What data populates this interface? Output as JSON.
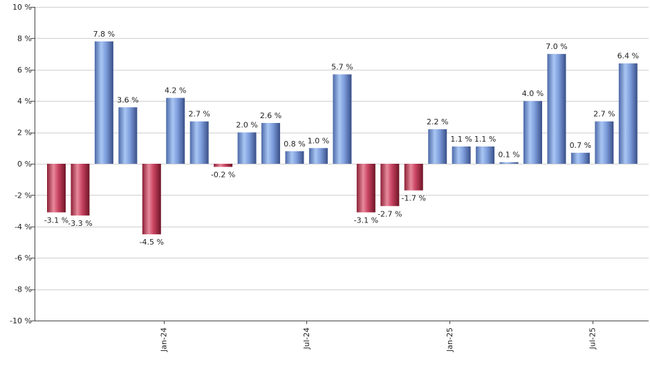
{
  "chart_data": {
    "type": "bar",
    "ylim": [
      -10,
      10
    ],
    "y_ticks": [
      {
        "value": 10,
        "label": "10 %"
      },
      {
        "value": 8,
        "label": "8 %"
      },
      {
        "value": 6,
        "label": "6 %"
      },
      {
        "value": 4,
        "label": "4 %"
      },
      {
        "value": 2,
        "label": "2 %"
      },
      {
        "value": 0,
        "label": "0 %"
      },
      {
        "value": -2,
        "label": "-2 %"
      },
      {
        "value": -4,
        "label": "-4 %"
      },
      {
        "value": -6,
        "label": "-6 %"
      },
      {
        "value": -8,
        "label": "-8 %"
      },
      {
        "value": -10,
        "label": "-10 %"
      }
    ],
    "x_ticks": [
      {
        "index": 4.5,
        "label": "Jan-24"
      },
      {
        "index": 10.5,
        "label": "Jul-24"
      },
      {
        "index": 16.5,
        "label": "Jan-25"
      },
      {
        "index": 22.5,
        "label": "Jul-25"
      }
    ],
    "values": [
      -3.1,
      -3.3,
      7.8,
      3.6,
      -4.5,
      4.2,
      2.7,
      -0.2,
      2.0,
      2.6,
      0.8,
      1.0,
      5.7,
      -3.1,
      -2.7,
      -1.7,
      2.2,
      1.1,
      1.1,
      0.1,
      4.0,
      7.0,
      0.7,
      2.7,
      6.4
    ],
    "data_labels": [
      "-3.1 %",
      "-3.3 %",
      "7.8 %",
      "3.6 %",
      "-4.5 %",
      "4.2 %",
      "2.7 %",
      "-0.2 %",
      "2.0 %",
      "2.6 %",
      "0.8 %",
      "1.0 %",
      "5.7 %",
      "-3.1 %",
      "-2.7 %",
      "-1.7 %",
      "2.2 %",
      "1.1 %",
      "1.1 %",
      "0.1 %",
      "4.0 %",
      "7.0 %",
      "0.7 %",
      "2.7 %",
      "6.4 %"
    ],
    "grid": true,
    "colors": {
      "positive_light": "#a8c4f0",
      "positive_mid": "#7a9ee2",
      "positive_dark": "#3c5592",
      "negative_light": "#e07a8e",
      "negative_mid": "#c94060",
      "negative_dark": "#7a1428",
      "grid": "#cfcfcf",
      "axis": "#444444"
    }
  }
}
